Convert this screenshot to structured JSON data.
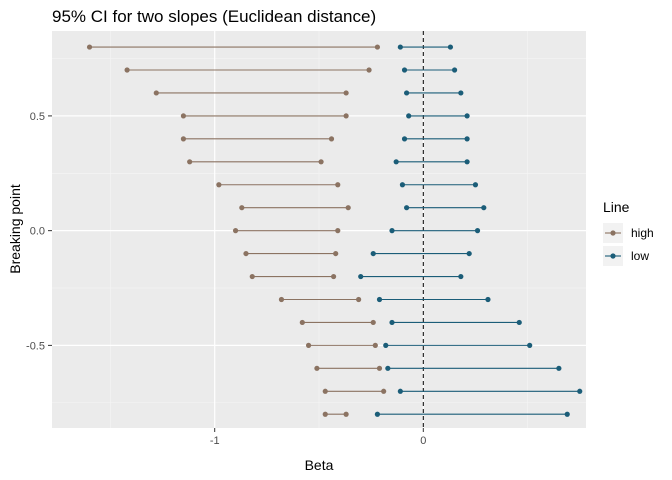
{
  "chart_data": {
    "type": "dumbbell",
    "title": "95% CI for two slopes (Euclidean distance)",
    "xlabel": "Beta",
    "ylabel": "Breaking point",
    "xlim": [
      -1.78,
      0.78
    ],
    "ylim": [
      -0.86,
      0.87
    ],
    "x_ticks": [
      {
        "value": -1,
        "label": "-1"
      },
      {
        "value": 0,
        "label": "0"
      }
    ],
    "y_ticks": [
      {
        "value": 0.5,
        "label": "0.5"
      },
      {
        "value": 0.0,
        "label": "0.0"
      },
      {
        "value": -0.5,
        "label": "-0.5"
      }
    ],
    "grid": true,
    "reference_line": {
      "x": 0,
      "style": "dashed"
    },
    "legend": {
      "title": "Line",
      "position": "right"
    },
    "series": [
      {
        "name": "high",
        "color": "#8B7362",
        "intervals": [
          {
            "y": 0.8,
            "lo": -1.6,
            "hi": -0.22
          },
          {
            "y": 0.7,
            "lo": -1.42,
            "hi": -0.26
          },
          {
            "y": 0.6,
            "lo": -1.28,
            "hi": -0.37
          },
          {
            "y": 0.5,
            "lo": -1.15,
            "hi": -0.37
          },
          {
            "y": 0.4,
            "lo": -1.15,
            "hi": -0.44
          },
          {
            "y": 0.3,
            "lo": -1.12,
            "hi": -0.49
          },
          {
            "y": 0.2,
            "lo": -0.98,
            "hi": -0.41
          },
          {
            "y": 0.1,
            "lo": -0.87,
            "hi": -0.36
          },
          {
            "y": 0.0,
            "lo": -0.9,
            "hi": -0.41
          },
          {
            "y": -0.1,
            "lo": -0.85,
            "hi": -0.42
          },
          {
            "y": -0.2,
            "lo": -0.82,
            "hi": -0.43
          },
          {
            "y": -0.3,
            "lo": -0.68,
            "hi": -0.31
          },
          {
            "y": -0.4,
            "lo": -0.58,
            "hi": -0.24
          },
          {
            "y": -0.5,
            "lo": -0.55,
            "hi": -0.23
          },
          {
            "y": -0.6,
            "lo": -0.51,
            "hi": -0.21
          },
          {
            "y": -0.7,
            "lo": -0.47,
            "hi": -0.19
          },
          {
            "y": -0.8,
            "lo": -0.47,
            "hi": -0.37
          }
        ]
      },
      {
        "name": "low",
        "color": "#1B5D78",
        "intervals": [
          {
            "y": 0.8,
            "lo": -0.11,
            "hi": 0.13
          },
          {
            "y": 0.7,
            "lo": -0.09,
            "hi": 0.15
          },
          {
            "y": 0.6,
            "lo": -0.08,
            "hi": 0.18
          },
          {
            "y": 0.5,
            "lo": -0.07,
            "hi": 0.21
          },
          {
            "y": 0.4,
            "lo": -0.09,
            "hi": 0.21
          },
          {
            "y": 0.3,
            "lo": -0.13,
            "hi": 0.21
          },
          {
            "y": 0.2,
            "lo": -0.1,
            "hi": 0.25
          },
          {
            "y": 0.1,
            "lo": -0.08,
            "hi": 0.29
          },
          {
            "y": 0.0,
            "lo": -0.15,
            "hi": 0.26
          },
          {
            "y": -0.1,
            "lo": -0.24,
            "hi": 0.22
          },
          {
            "y": -0.2,
            "lo": -0.3,
            "hi": 0.18
          },
          {
            "y": -0.3,
            "lo": -0.21,
            "hi": 0.31
          },
          {
            "y": -0.4,
            "lo": -0.15,
            "hi": 0.46
          },
          {
            "y": -0.5,
            "lo": -0.18,
            "hi": 0.51
          },
          {
            "y": -0.6,
            "lo": -0.17,
            "hi": 0.65
          },
          {
            "y": -0.7,
            "lo": -0.11,
            "hi": 0.75
          },
          {
            "y": -0.8,
            "lo": -0.22,
            "hi": 0.69
          }
        ]
      }
    ]
  }
}
